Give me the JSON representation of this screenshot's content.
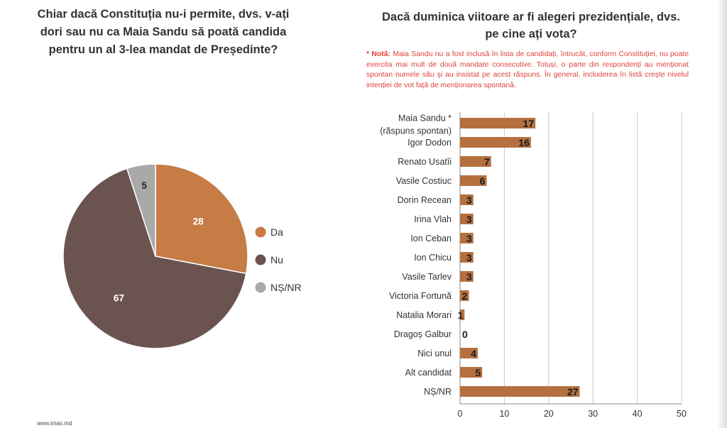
{
  "left_title": "Chiar dacă Constituția nu-i permite, dvs. v-ați dori sau nu ca Maia Sandu să poată candida pentru un al 3-lea mandat de Președinte?",
  "right_title": "Dacă duminica viitoare ar fi alegeri prezidențiale, dvs. pe cine ați vota?",
  "note": {
    "prefix": "* Notă:",
    "text": "Maia Sandu nu a fost inclusă în lista de candidați, întrucât, conform Constituției, nu poate exercita mai mult de două mandate consecutive. Totuși, o parte din respondenți au menționat spontan numele său și au insistat pe acest răspuns. În general, includerea în listă crește nivelul intenției de vot față de menționarea spontană."
  },
  "footer": "www.imas.md",
  "chart_data": [
    {
      "type": "pie",
      "title": "Chiar dacă Constituția nu-i permite, dvs. v-ați dori sau nu ca Maia Sandu să poată candida pentru un al 3-lea mandat de Președinte?",
      "legend_position": "right",
      "slices": [
        {
          "label": "Da",
          "value": 28,
          "color": "#c77b45"
        },
        {
          "label": "Nu",
          "value": 67,
          "color": "#6b5450"
        },
        {
          "label": "NȘ/NR",
          "value": 5,
          "color": "#a9a9a9"
        }
      ]
    },
    {
      "type": "bar",
      "orientation": "horizontal",
      "title": "Dacă duminica viitoare ar fi alegeri prezidențiale, dvs. pe cine ați vota?",
      "categories": [
        [
          "Maia Sandu *",
          "(răspuns spontan)"
        ],
        [
          "Igor Dodon"
        ],
        [
          "Renato Usatîi"
        ],
        [
          "Vasile Costiuc"
        ],
        [
          "Dorin Recean"
        ],
        [
          "Irina Vlah"
        ],
        [
          "Ion Ceban"
        ],
        [
          "Ion Chicu"
        ],
        [
          "Vasile Tarlev"
        ],
        [
          "Victoria Fortună"
        ],
        [
          "Natalia Morari"
        ],
        [
          "Dragoș Galbur"
        ],
        [
          "Nici unul"
        ],
        [
          "Alt candidat"
        ],
        [
          "NȘ/NR"
        ]
      ],
      "values": [
        17,
        16,
        7,
        6,
        3,
        3,
        3,
        3,
        3,
        2,
        1,
        0,
        4,
        5,
        27
      ],
      "xlim": [
        0,
        50
      ],
      "xticks": [
        0,
        10,
        20,
        30,
        40,
        50
      ],
      "bar_color": "#b4703e",
      "grid": true
    }
  ]
}
